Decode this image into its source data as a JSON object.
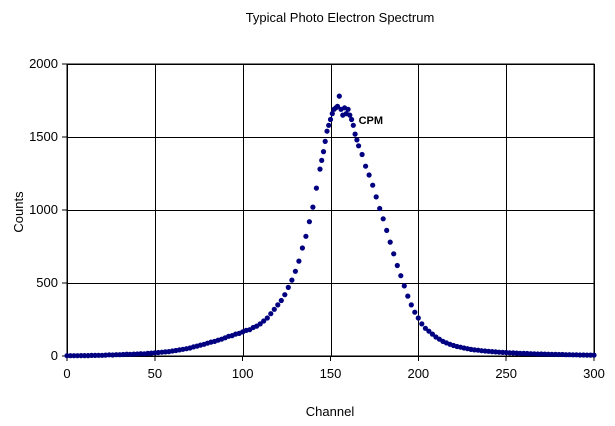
{
  "chart_data": {
    "type": "scatter",
    "title": "Typical Photo Electron Spectrum",
    "xlabel": "Channel",
    "ylabel": "Counts",
    "xlim": [
      0,
      300
    ],
    "ylim": [
      0,
      2000
    ],
    "xticks": [
      0,
      50,
      100,
      150,
      200,
      250,
      300
    ],
    "yticks": [
      0,
      500,
      1000,
      1500,
      2000
    ],
    "grid": true,
    "marker_color": "#000080",
    "annotation": {
      "text": "CPM",
      "x": 166,
      "y": 1590
    },
    "series": [
      {
        "values": [
          [
            0,
            2
          ],
          [
            2,
            2
          ],
          [
            4,
            2
          ],
          [
            6,
            2
          ],
          [
            8,
            3
          ],
          [
            10,
            3
          ],
          [
            12,
            3
          ],
          [
            14,
            4
          ],
          [
            16,
            4
          ],
          [
            18,
            5
          ],
          [
            20,
            5
          ],
          [
            22,
            6
          ],
          [
            24,
            8
          ],
          [
            26,
            7
          ],
          [
            28,
            9
          ],
          [
            30,
            9
          ],
          [
            32,
            10
          ],
          [
            34,
            12
          ],
          [
            36,
            11
          ],
          [
            38,
            13
          ],
          [
            40,
            14
          ],
          [
            42,
            16
          ],
          [
            44,
            15
          ],
          [
            46,
            18
          ],
          [
            48,
            20
          ],
          [
            50,
            22
          ],
          [
            52,
            24
          ],
          [
            54,
            26
          ],
          [
            56,
            28
          ],
          [
            58,
            30
          ],
          [
            60,
            34
          ],
          [
            62,
            38
          ],
          [
            64,
            42
          ],
          [
            66,
            46
          ],
          [
            68,
            50
          ],
          [
            70,
            55
          ],
          [
            72,
            62
          ],
          [
            74,
            68
          ],
          [
            76,
            75
          ],
          [
            78,
            80
          ],
          [
            80,
            88
          ],
          [
            82,
            95
          ],
          [
            84,
            100
          ],
          [
            86,
            108
          ],
          [
            88,
            115
          ],
          [
            90,
            125
          ],
          [
            92,
            135
          ],
          [
            94,
            140
          ],
          [
            96,
            150
          ],
          [
            98,
            155
          ],
          [
            100,
            165
          ],
          [
            102,
            175
          ],
          [
            104,
            180
          ],
          [
            106,
            195
          ],
          [
            108,
            205
          ],
          [
            110,
            220
          ],
          [
            112,
            240
          ],
          [
            114,
            260
          ],
          [
            116,
            290
          ],
          [
            118,
            320
          ],
          [
            120,
            350
          ],
          [
            122,
            380
          ],
          [
            124,
            420
          ],
          [
            126,
            470
          ],
          [
            128,
            520
          ],
          [
            130,
            580
          ],
          [
            132,
            650
          ],
          [
            134,
            740
          ],
          [
            136,
            820
          ],
          [
            138,
            920
          ],
          [
            140,
            1020
          ],
          [
            142,
            1150
          ],
          [
            144,
            1280
          ],
          [
            145,
            1340
          ],
          [
            146,
            1400
          ],
          [
            147,
            1470
          ],
          [
            148,
            1540
          ],
          [
            149,
            1580
          ],
          [
            150,
            1620
          ],
          [
            151,
            1660
          ],
          [
            152,
            1690
          ],
          [
            153,
            1700
          ],
          [
            154,
            1710
          ],
          [
            155,
            1780
          ],
          [
            156,
            1690
          ],
          [
            157,
            1650
          ],
          [
            158,
            1700
          ],
          [
            159,
            1660
          ],
          [
            160,
            1690
          ],
          [
            161,
            1650
          ],
          [
            162,
            1620
          ],
          [
            163,
            1580
          ],
          [
            164,
            1520
          ],
          [
            165,
            1480
          ],
          [
            166,
            1440
          ],
          [
            168,
            1380
          ],
          [
            170,
            1300
          ],
          [
            172,
            1240
          ],
          [
            174,
            1170
          ],
          [
            176,
            1090
          ],
          [
            178,
            1010
          ],
          [
            180,
            940
          ],
          [
            182,
            860
          ],
          [
            184,
            780
          ],
          [
            186,
            700
          ],
          [
            188,
            620
          ],
          [
            190,
            550
          ],
          [
            192,
            480
          ],
          [
            194,
            410
          ],
          [
            196,
            350
          ],
          [
            198,
            300
          ],
          [
            200,
            260
          ],
          [
            202,
            220
          ],
          [
            204,
            190
          ],
          [
            206,
            170
          ],
          [
            208,
            150
          ],
          [
            210,
            130
          ],
          [
            212,
            115
          ],
          [
            214,
            100
          ],
          [
            216,
            90
          ],
          [
            218,
            80
          ],
          [
            220,
            72
          ],
          [
            222,
            65
          ],
          [
            224,
            60
          ],
          [
            226,
            55
          ],
          [
            228,
            50
          ],
          [
            230,
            45
          ],
          [
            232,
            42
          ],
          [
            234,
            40
          ],
          [
            236,
            36
          ],
          [
            238,
            34
          ],
          [
            240,
            32
          ],
          [
            242,
            30
          ],
          [
            244,
            28
          ],
          [
            246,
            26
          ],
          [
            248,
            25
          ],
          [
            250,
            24
          ],
          [
            252,
            22
          ],
          [
            254,
            21
          ],
          [
            256,
            20
          ],
          [
            258,
            18
          ],
          [
            260,
            18
          ],
          [
            262,
            17
          ],
          [
            264,
            16
          ],
          [
            266,
            15
          ],
          [
            268,
            14
          ],
          [
            270,
            14
          ],
          [
            272,
            13
          ],
          [
            274,
            12
          ],
          [
            276,
            11
          ],
          [
            278,
            11
          ],
          [
            280,
            10
          ],
          [
            282,
            10
          ],
          [
            284,
            9
          ],
          [
            286,
            9
          ],
          [
            288,
            8
          ],
          [
            290,
            8
          ],
          [
            292,
            7
          ],
          [
            294,
            7
          ],
          [
            296,
            6
          ],
          [
            298,
            6
          ],
          [
            300,
            6
          ]
        ]
      }
    ]
  }
}
